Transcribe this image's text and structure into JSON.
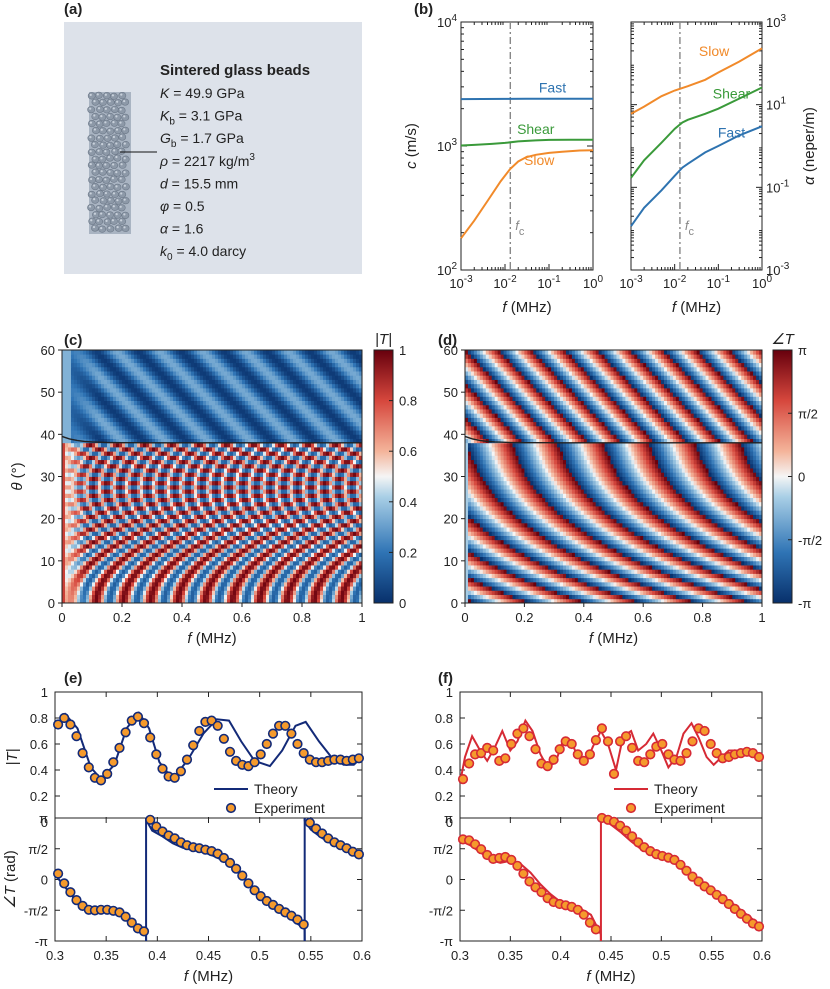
{
  "panels": {
    "a": {
      "label": "(a)",
      "title": "Sintered glass beads",
      "params": [
        {
          "sym": "K",
          "sub": "",
          "eq": " = 49.9 GPa",
          "sup": ""
        },
        {
          "sym": "K",
          "sub": "b",
          "eq": " = 3.1 GPa",
          "sup": ""
        },
        {
          "sym": "G",
          "sub": "b",
          "eq": " = 1.7 GPa",
          "sup": ""
        },
        {
          "sym": "ρ",
          "sub": "",
          "eq": " = 2217 kg/m",
          "sup": "3"
        },
        {
          "sym": "d",
          "sub": "",
          "eq": " = 15.5 mm",
          "sup": ""
        },
        {
          "sym": "φ",
          "sub": "",
          "eq": " = 0.5",
          "sup": ""
        },
        {
          "sym": "α",
          "sub": "",
          "eq": " = 1.6",
          "sup": ""
        },
        {
          "sym": "k",
          "sub": "0",
          "eq": " = 4.0 darcy",
          "sup": ""
        }
      ],
      "colors": {
        "box": "#dde2ea",
        "bead": "#8d99a8"
      }
    },
    "b": {
      "label": "(b)"
    },
    "c": {
      "label": "(c)"
    },
    "d": {
      "label": "(d)"
    },
    "e": {
      "label": "(e)"
    },
    "f": {
      "label": "(f)"
    }
  },
  "chart_data": [
    {
      "id": "b-velocity",
      "type": "line",
      "xscale": "log",
      "yscale": "log",
      "xlim": [
        0.001,
        1
      ],
      "ylim": [
        100,
        10000
      ],
      "xlabel_sym": "f",
      "xlabel_unit": " (MHz)",
      "ylabel_sym": "c",
      "ylabel_unit": " (m/s)",
      "xticks": [
        {
          "v": 0.001,
          "b": "10",
          "e": "-3"
        },
        {
          "v": 0.01,
          "b": "10",
          "e": "-2"
        },
        {
          "v": 0.1,
          "b": "10",
          "e": "-1"
        },
        {
          "v": 1,
          "b": "10",
          "e": "0"
        }
      ],
      "yticks": [
        {
          "v": 100,
          "b": "10",
          "e": "2"
        },
        {
          "v": 1000,
          "b": "10",
          "e": "3"
        },
        {
          "v": 10000,
          "b": "10",
          "e": "4"
        }
      ],
      "vline": {
        "x": 0.0132,
        "sym": "f",
        "sub": "c",
        "color": "#888888"
      },
      "series": [
        {
          "name": "Fast",
          "color": "#2e73b0",
          "x": [
            0.001,
            0.003,
            0.01,
            0.03,
            0.1,
            0.3,
            1
          ],
          "y": [
            2390,
            2395,
            2400,
            2405,
            2405,
            2405,
            2405
          ],
          "lx": 0.12,
          "ly": 2700
        },
        {
          "name": "Shear",
          "color": "#3a9a3a",
          "x": [
            0.001,
            0.002,
            0.005,
            0.01,
            0.02,
            0.05,
            0.1,
            0.3,
            1
          ],
          "y": [
            1010,
            1020,
            1040,
            1060,
            1090,
            1110,
            1120,
            1125,
            1125
          ],
          "lx": 0.05,
          "ly": 1250
        },
        {
          "name": "Slow",
          "color": "#f18a2a",
          "x": [
            0.001,
            0.002,
            0.004,
            0.008,
            0.013,
            0.02,
            0.03,
            0.05,
            0.1,
            0.2,
            0.5,
            1
          ],
          "y": [
            180,
            250,
            360,
            520,
            650,
            750,
            810,
            850,
            880,
            900,
            920,
            925
          ],
          "lx": 0.06,
          "ly": 700
        }
      ]
    },
    {
      "id": "b-attenuation",
      "type": "line",
      "xscale": "log",
      "yscale": "log",
      "xlim": [
        0.001,
        1
      ],
      "ylim": [
        0.001,
        1000
      ],
      "xlabel_sym": "f",
      "xlabel_unit": " (MHz)",
      "ylabel_sym": "α",
      "ylabel_unit": " (neper/m)",
      "xticks": [
        {
          "v": 0.001,
          "b": "10",
          "e": "-3"
        },
        {
          "v": 0.01,
          "b": "10",
          "e": "-2"
        },
        {
          "v": 0.1,
          "b": "10",
          "e": "-1"
        },
        {
          "v": 1,
          "b": "10",
          "e": "0"
        }
      ],
      "yticks": [
        {
          "v": 0.001,
          "b": "10",
          "e": "-3"
        },
        {
          "v": 0.1,
          "b": "10",
          "e": "-1"
        },
        {
          "v": 10,
          "b": "10",
          "e": "1"
        },
        {
          "v": 1000,
          "b": "10",
          "e": "3"
        }
      ],
      "vline": {
        "x": 0.0132,
        "sym": "f",
        "sub": "c",
        "color": "#888888"
      },
      "series": [
        {
          "name": "Slow",
          "color": "#f18a2a",
          "x": [
            0.001,
            0.002,
            0.005,
            0.01,
            0.02,
            0.05,
            0.1,
            0.3,
            1
          ],
          "y": [
            6,
            9,
            16,
            22,
            28,
            40,
            60,
            110,
            230
          ],
          "lx": 0.08,
          "ly": 150
        },
        {
          "name": "Shear",
          "color": "#3a9a3a",
          "x": [
            0.001,
            0.002,
            0.005,
            0.01,
            0.015,
            0.02,
            0.05,
            0.1,
            0.3,
            1
          ],
          "y": [
            0.17,
            0.45,
            1.2,
            2.6,
            3.7,
            4.3,
            6.0,
            8.0,
            14,
            26
          ],
          "lx": 0.2,
          "ly": 14
        },
        {
          "name": "Fast",
          "color": "#2e73b0",
          "x": [
            0.001,
            0.002,
            0.005,
            0.01,
            0.015,
            0.02,
            0.05,
            0.1,
            0.3,
            1
          ],
          "y": [
            0.0115,
            0.032,
            0.085,
            0.19,
            0.3,
            0.37,
            0.7,
            1.0,
            1.8,
            3.0
          ],
          "lx": 0.2,
          "ly": 1.6
        }
      ]
    },
    {
      "id": "c-magnitude-map",
      "type": "heatmap",
      "xlim": [
        0,
        1
      ],
      "ylim": [
        0,
        60
      ],
      "xlabel_sym": "f",
      "xlabel_unit": " (MHz)",
      "ylabel_sym": "θ",
      "ylabel_unit": " (°)",
      "xticks": [
        "0",
        "0.2",
        "0.4",
        "0.6",
        "0.8",
        "1"
      ],
      "yticks": [
        "0",
        "10",
        "20",
        "30",
        "40",
        "50",
        "60"
      ],
      "cbar_title": "|T|",
      "cbar_range": [
        0,
        1
      ],
      "cbar_ticks": [
        "0",
        "0.2",
        "0.4",
        "0.6",
        "0.8",
        "1"
      ],
      "critical_angle_deg": 38
    },
    {
      "id": "d-phase-map",
      "type": "heatmap",
      "xlim": [
        0,
        1
      ],
      "ylim": [
        0,
        60
      ],
      "xlabel_sym": "f",
      "xlabel_unit": " (MHz)",
      "xticks": [
        "0",
        "0.2",
        "0.4",
        "0.6",
        "0.8",
        "1"
      ],
      "yticks": [
        "0",
        "10",
        "20",
        "30",
        "40",
        "50",
        "60"
      ],
      "cbar_title": "∠T",
      "cbar_range": [
        -3.1416,
        3.1416
      ],
      "cbar_ticks": [
        "-π",
        "-π/2",
        "0",
        "π/2",
        "π"
      ],
      "critical_angle_deg": 38
    },
    {
      "id": "e-magnitude",
      "type": "line",
      "xlim": [
        0.3,
        0.6
      ],
      "ylim": [
        0,
        1
      ],
      "ylabel": "|T|",
      "yticks": [
        "0",
        "0.2",
        "0.4",
        "0.6",
        "0.8",
        "1"
      ],
      "color": "#132a78",
      "legend": [
        "Theory",
        "Experiment"
      ],
      "theory_x": [
        0.3,
        0.31,
        0.322,
        0.335,
        0.345,
        0.358,
        0.37,
        0.382,
        0.392,
        0.402,
        0.415,
        0.43,
        0.445,
        0.458,
        0.47,
        0.482,
        0.495,
        0.51,
        0.522,
        0.535,
        0.545,
        0.558,
        0.57,
        0.582,
        0.592,
        0.6
      ],
      "theory_y": [
        0.72,
        0.83,
        0.72,
        0.42,
        0.33,
        0.44,
        0.72,
        0.84,
        0.72,
        0.46,
        0.33,
        0.48,
        0.68,
        0.79,
        0.78,
        0.62,
        0.47,
        0.43,
        0.55,
        0.74,
        0.77,
        0.62,
        0.5,
        0.44,
        0.44,
        0.5
      ],
      "exp_x": [
        0.303,
        0.309,
        0.315,
        0.321,
        0.327,
        0.333,
        0.339,
        0.345,
        0.351,
        0.357,
        0.363,
        0.369,
        0.375,
        0.381,
        0.387,
        0.393,
        0.399,
        0.405,
        0.411,
        0.417,
        0.423,
        0.429,
        0.435,
        0.441,
        0.447,
        0.453,
        0.459,
        0.465,
        0.471,
        0.477,
        0.483,
        0.489,
        0.495,
        0.501,
        0.507,
        0.513,
        0.519,
        0.525,
        0.531,
        0.537,
        0.543,
        0.549,
        0.555,
        0.561,
        0.567,
        0.573,
        0.579,
        0.585,
        0.591,
        0.597
      ],
      "exp_y": [
        0.75,
        0.8,
        0.75,
        0.66,
        0.53,
        0.42,
        0.34,
        0.32,
        0.37,
        0.46,
        0.57,
        0.69,
        0.78,
        0.81,
        0.76,
        0.65,
        0.52,
        0.41,
        0.35,
        0.34,
        0.39,
        0.48,
        0.59,
        0.7,
        0.77,
        0.78,
        0.74,
        0.64,
        0.54,
        0.47,
        0.44,
        0.43,
        0.46,
        0.52,
        0.6,
        0.68,
        0.74,
        0.74,
        0.68,
        0.6,
        0.53,
        0.48,
        0.46,
        0.46,
        0.47,
        0.48,
        0.48,
        0.47,
        0.48,
        0.49
      ]
    },
    {
      "id": "e-phase",
      "type": "line",
      "xlim": [
        0.3,
        0.6
      ],
      "ylim": [
        -3.1416,
        3.1416
      ],
      "xlabel_sym": "f",
      "xlabel_unit": " (MHz)",
      "ylabel_sym": "∠T",
      "ylabel_unit": " (rad)",
      "xticks": [
        "0.3",
        "0.35",
        "0.4",
        "0.45",
        "0.5",
        "0.55",
        "0.6"
      ],
      "yticks": [
        "-π",
        "-π/2",
        "0",
        "π/2",
        "π"
      ],
      "color": "#132a78",
      "jumps": [
        0.389,
        0.544
      ],
      "theory_x": [
        0.3,
        0.31,
        0.32,
        0.33,
        0.34,
        0.35,
        0.36,
        0.37,
        0.38,
        0.3889,
        0.389,
        0.395,
        0.405,
        0.415,
        0.425,
        0.435,
        0.445,
        0.455,
        0.465,
        0.475,
        0.485,
        0.495,
        0.505,
        0.515,
        0.525,
        0.535,
        0.5439,
        0.544,
        0.55,
        0.56,
        0.57,
        0.58,
        0.59,
        0.6
      ],
      "theory_y": [
        0.25,
        -0.4,
        -1.05,
        -1.5,
        -1.58,
        -1.58,
        -1.6,
        -1.82,
        -2.35,
        -2.6,
        3.05,
        2.5,
        2.2,
        1.85,
        1.62,
        1.5,
        1.4,
        1.2,
        0.95,
        0.6,
        0.1,
        -0.55,
        -1.1,
        -1.5,
        -1.78,
        -2.2,
        -2.5,
        3.0,
        2.55,
        2.15,
        1.85,
        1.6,
        1.35,
        1.1
      ],
      "exp_x": [
        0.303,
        0.309,
        0.315,
        0.321,
        0.327,
        0.333,
        0.339,
        0.345,
        0.351,
        0.357,
        0.363,
        0.369,
        0.375,
        0.381,
        0.387,
        0.393,
        0.399,
        0.405,
        0.411,
        0.417,
        0.423,
        0.429,
        0.435,
        0.441,
        0.447,
        0.453,
        0.459,
        0.465,
        0.471,
        0.477,
        0.483,
        0.489,
        0.495,
        0.501,
        0.507,
        0.513,
        0.519,
        0.525,
        0.531,
        0.537,
        0.543,
        0.549,
        0.555,
        0.561,
        0.567,
        0.573,
        0.579,
        0.585,
        0.591,
        0.597
      ],
      "exp_y": [
        0.3,
        -0.2,
        -0.65,
        -1.05,
        -1.35,
        -1.55,
        -1.58,
        -1.55,
        -1.55,
        -1.6,
        -1.68,
        -1.9,
        -2.2,
        -2.5,
        -2.65,
        3.05,
        2.7,
        2.45,
        2.25,
        2.1,
        1.9,
        1.75,
        1.65,
        1.6,
        1.52,
        1.45,
        1.32,
        1.1,
        0.85,
        0.55,
        0.2,
        -0.2,
        -0.55,
        -0.85,
        -1.1,
        -1.3,
        -1.5,
        -1.68,
        -1.85,
        -2.05,
        -2.3,
        2.9,
        2.6,
        2.35,
        2.1,
        1.9,
        1.75,
        1.6,
        1.42,
        1.28
      ]
    },
    {
      "id": "f-magnitude",
      "type": "line",
      "xlim": [
        0.3,
        0.6
      ],
      "ylim": [
        0,
        1
      ],
      "yticks": [
        "0",
        "0.2",
        "0.4",
        "0.6",
        "0.8",
        "1"
      ],
      "color": "#d62a35",
      "legend": [
        "Theory",
        "Experiment"
      ],
      "theory_x": [
        0.3,
        0.305,
        0.312,
        0.32,
        0.327,
        0.335,
        0.342,
        0.35,
        0.357,
        0.365,
        0.372,
        0.38,
        0.387,
        0.395,
        0.402,
        0.41,
        0.417,
        0.425,
        0.432,
        0.44,
        0.447,
        0.455,
        0.462,
        0.47,
        0.477,
        0.485,
        0.492,
        0.5,
        0.507,
        0.515,
        0.522,
        0.53,
        0.537,
        0.545,
        0.552,
        0.56,
        0.567,
        0.575,
        0.582,
        0.59,
        0.6
      ],
      "theory_y": [
        0.3,
        0.5,
        0.66,
        0.55,
        0.47,
        0.58,
        0.7,
        0.55,
        0.62,
        0.78,
        0.7,
        0.52,
        0.42,
        0.46,
        0.62,
        0.63,
        0.5,
        0.45,
        0.58,
        0.7,
        0.6,
        0.4,
        0.66,
        0.7,
        0.55,
        0.6,
        0.68,
        0.55,
        0.42,
        0.5,
        0.68,
        0.76,
        0.65,
        0.5,
        0.44,
        0.5,
        0.55,
        0.55,
        0.54,
        0.52,
        0.48
      ],
      "exp_x": [
        0.303,
        0.309,
        0.315,
        0.321,
        0.327,
        0.333,
        0.339,
        0.345,
        0.351,
        0.357,
        0.363,
        0.369,
        0.375,
        0.381,
        0.387,
        0.393,
        0.399,
        0.405,
        0.411,
        0.417,
        0.423,
        0.429,
        0.435,
        0.441,
        0.447,
        0.453,
        0.459,
        0.465,
        0.471,
        0.477,
        0.483,
        0.489,
        0.495,
        0.501,
        0.507,
        0.513,
        0.519,
        0.525,
        0.531,
        0.537,
        0.543,
        0.549,
        0.555,
        0.561,
        0.567,
        0.573,
        0.579,
        0.585,
        0.591,
        0.597
      ],
      "exp_y": [
        0.33,
        0.45,
        0.52,
        0.53,
        0.57,
        0.55,
        0.47,
        0.49,
        0.6,
        0.68,
        0.72,
        0.66,
        0.56,
        0.45,
        0.43,
        0.48,
        0.56,
        0.62,
        0.6,
        0.52,
        0.47,
        0.52,
        0.63,
        0.72,
        0.62,
        0.37,
        0.62,
        0.66,
        0.57,
        0.47,
        0.46,
        0.52,
        0.58,
        0.6,
        0.52,
        0.48,
        0.47,
        0.53,
        0.62,
        0.72,
        0.7,
        0.6,
        0.53,
        0.49,
        0.5,
        0.52,
        0.53,
        0.54,
        0.53,
        0.5
      ]
    },
    {
      "id": "f-phase",
      "type": "line",
      "xlim": [
        0.3,
        0.6
      ],
      "ylim": [
        -3.1416,
        3.1416
      ],
      "xlabel_sym": "f",
      "xlabel_unit": " (MHz)",
      "xticks": [
        "0.3",
        "0.35",
        "0.4",
        "0.45",
        "0.5",
        "0.55",
        "0.6"
      ],
      "yticks": [
        "-π",
        "-π/2",
        "0",
        "π/2",
        "π"
      ],
      "color": "#d62a35",
      "jumps": [
        0.44
      ],
      "theory_x": [
        0.3,
        0.31,
        0.32,
        0.33,
        0.34,
        0.35,
        0.36,
        0.37,
        0.38,
        0.39,
        0.4,
        0.41,
        0.42,
        0.43,
        0.4399,
        0.44,
        0.45,
        0.46,
        0.47,
        0.48,
        0.49,
        0.5,
        0.51,
        0.52,
        0.53,
        0.54,
        0.55,
        0.56,
        0.57,
        0.58,
        0.59,
        0.6
      ],
      "theory_y": [
        2.0,
        1.75,
        1.4,
        1.0,
        0.85,
        0.95,
        0.8,
        0.35,
        -0.25,
        -0.75,
        -1.15,
        -1.3,
        -1.5,
        -1.8,
        -2.8,
        3.14,
        2.8,
        2.4,
        1.95,
        1.55,
        1.3,
        1.12,
        0.98,
        0.55,
        0.15,
        -0.25,
        -0.6,
        -0.9,
        -1.2,
        -1.6,
        -2.0,
        -2.4
      ],
      "exp_x": [
        0.303,
        0.309,
        0.315,
        0.321,
        0.327,
        0.333,
        0.339,
        0.345,
        0.351,
        0.357,
        0.363,
        0.369,
        0.375,
        0.381,
        0.387,
        0.393,
        0.399,
        0.405,
        0.411,
        0.417,
        0.423,
        0.429,
        0.435,
        0.441,
        0.447,
        0.453,
        0.459,
        0.465,
        0.471,
        0.477,
        0.483,
        0.489,
        0.495,
        0.501,
        0.507,
        0.513,
        0.519,
        0.525,
        0.531,
        0.537,
        0.543,
        0.549,
        0.555,
        0.561,
        0.567,
        0.573,
        0.579,
        0.585,
        0.591,
        0.597
      ],
      "exp_y": [
        2.05,
        2.0,
        1.8,
        1.55,
        1.25,
        1.05,
        1.1,
        1.15,
        1.0,
        0.7,
        0.3,
        -0.1,
        -0.4,
        -0.65,
        -0.95,
        -1.15,
        -1.25,
        -1.32,
        -1.4,
        -1.55,
        -1.8,
        -2.2,
        -2.55,
        3.14,
        3.05,
        2.95,
        2.75,
        2.5,
        2.2,
        1.9,
        1.65,
        1.45,
        1.3,
        1.2,
        1.12,
        1.0,
        0.75,
        0.45,
        0.15,
        -0.1,
        -0.35,
        -0.55,
        -0.78,
        -1.0,
        -1.25,
        -1.5,
        -1.75,
        -2.0,
        -2.25,
        -2.4
      ]
    }
  ]
}
